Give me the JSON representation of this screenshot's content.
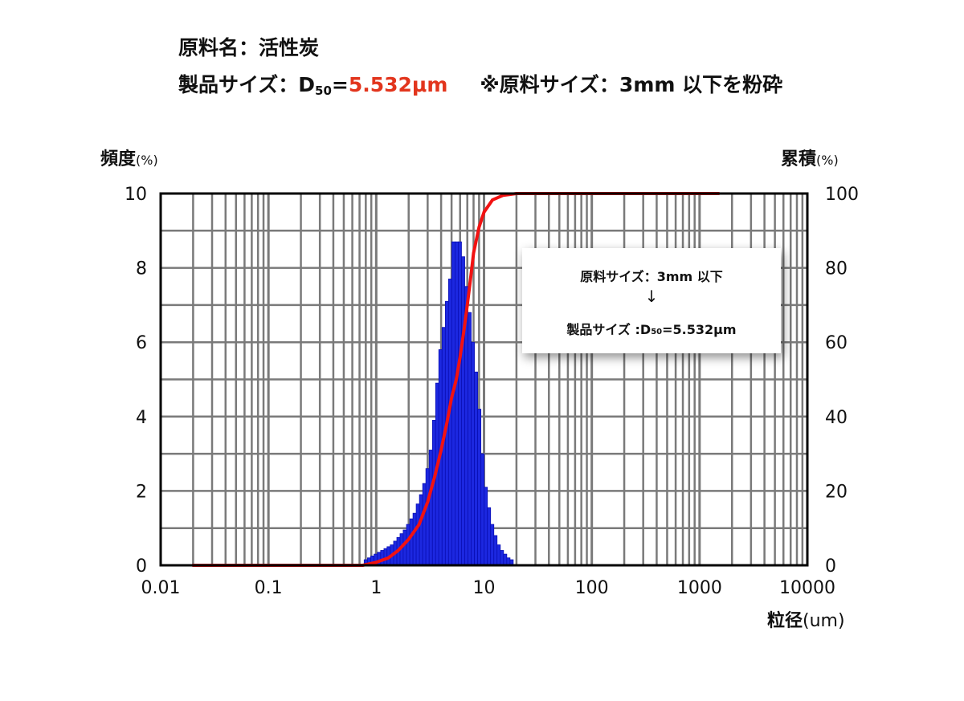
{
  "header": {
    "line1": "原料名：活性炭",
    "line2_label": "製品サイズ：D",
    "line2_sub": "50",
    "line2_eq": "=",
    "line2_value": "5.532μm",
    "line2_note": "※原料サイズ：3mm 以下を粉砕"
  },
  "annotation": {
    "line1": "原料サイズ：3mm 以下",
    "arrow": "↓",
    "line2_label": "製品サイズ :D",
    "line2_sub": "50",
    "line2_value": "=5.532μm"
  },
  "colors": {
    "bar": "#1c28e0",
    "bar_edge": "#0a0fb5",
    "curve": "#f21212",
    "grid": "#7a7a7a",
    "highlight": "#e2351d"
  },
  "chart_data": {
    "type": "bar",
    "x_scale": "log",
    "xlim": [
      0.01,
      10000
    ],
    "ylim_left": [
      0,
      10
    ],
    "ylim_right": [
      0,
      100
    ],
    "xlabel_main": "粒径",
    "xlabel_unit": "(um)",
    "ylabel_left_main": "頻度",
    "ylabel_left_unit": "(%)",
    "ylabel_right_main": "累積",
    "ylabel_right_unit": "(%)",
    "x_tick_labels": [
      "0.01",
      "0.1",
      "1",
      "10",
      "100",
      "1000",
      "10000"
    ],
    "x_tick_values": [
      0.01,
      0.1,
      1,
      10,
      100,
      1000,
      10000
    ],
    "y_left_tick_labels": [
      "0",
      "2",
      "4",
      "6",
      "8",
      "10"
    ],
    "y_right_tick_labels": [
      "0",
      "20",
      "40",
      "60",
      "80",
      "100"
    ],
    "grid": true,
    "frequency": [
      {
        "x": 0.8,
        "y": 0.15
      },
      {
        "x": 0.86,
        "y": 0.2
      },
      {
        "x": 0.92,
        "y": 0.25
      },
      {
        "x": 0.99,
        "y": 0.3
      },
      {
        "x": 1.06,
        "y": 0.35
      },
      {
        "x": 1.14,
        "y": 0.4
      },
      {
        "x": 1.22,
        "y": 0.45
      },
      {
        "x": 1.3,
        "y": 0.5
      },
      {
        "x": 1.4,
        "y": 0.55
      },
      {
        "x": 1.5,
        "y": 0.65
      },
      {
        "x": 1.61,
        "y": 0.75
      },
      {
        "x": 1.72,
        "y": 0.85
      },
      {
        "x": 1.84,
        "y": 0.95
      },
      {
        "x": 1.98,
        "y": 1.1
      },
      {
        "x": 2.12,
        "y": 1.25
      },
      {
        "x": 2.27,
        "y": 1.4
      },
      {
        "x": 2.43,
        "y": 1.65
      },
      {
        "x": 2.61,
        "y": 1.9
      },
      {
        "x": 2.79,
        "y": 2.2
      },
      {
        "x": 2.99,
        "y": 2.6
      },
      {
        "x": 3.21,
        "y": 3.1
      },
      {
        "x": 3.44,
        "y": 3.9
      },
      {
        "x": 3.68,
        "y": 4.9
      },
      {
        "x": 3.94,
        "y": 5.8
      },
      {
        "x": 4.23,
        "y": 6.4
      },
      {
        "x": 4.53,
        "y": 7.1
      },
      {
        "x": 4.85,
        "y": 7.7
      },
      {
        "x": 5.2,
        "y": 8.7
      },
      {
        "x": 5.57,
        "y": 8.7
      },
      {
        "x": 5.97,
        "y": 8.7
      },
      {
        "x": 6.4,
        "y": 8.3
      },
      {
        "x": 6.86,
        "y": 7.5
      },
      {
        "x": 7.35,
        "y": 6.8
      },
      {
        "x": 7.87,
        "y": 6.0
      },
      {
        "x": 8.43,
        "y": 5.2
      },
      {
        "x": 9.04,
        "y": 4.2
      },
      {
        "x": 9.69,
        "y": 3.0
      },
      {
        "x": 10.38,
        "y": 2.1
      },
      {
        "x": 11.12,
        "y": 1.55
      },
      {
        "x": 11.92,
        "y": 1.1
      },
      {
        "x": 12.77,
        "y": 0.8
      },
      {
        "x": 13.68,
        "y": 0.55
      },
      {
        "x": 14.66,
        "y": 0.4
      },
      {
        "x": 15.71,
        "y": 0.3
      },
      {
        "x": 16.84,
        "y": 0.2
      },
      {
        "x": 18.04,
        "y": 0.15
      }
    ],
    "cumulative": [
      {
        "x": 0.02,
        "y": 0
      },
      {
        "x": 0.75,
        "y": 0
      },
      {
        "x": 1.0,
        "y": 0.8
      },
      {
        "x": 1.3,
        "y": 2
      },
      {
        "x": 1.6,
        "y": 4
      },
      {
        "x": 2.0,
        "y": 7
      },
      {
        "x": 2.5,
        "y": 11
      },
      {
        "x": 3.0,
        "y": 17
      },
      {
        "x": 3.5,
        "y": 24
      },
      {
        "x": 4.0,
        "y": 31
      },
      {
        "x": 4.5,
        "y": 38
      },
      {
        "x": 5.0,
        "y": 45
      },
      {
        "x": 5.532,
        "y": 50
      },
      {
        "x": 6.0,
        "y": 56
      },
      {
        "x": 6.5,
        "y": 63
      },
      {
        "x": 7.0,
        "y": 70
      },
      {
        "x": 7.5,
        "y": 77
      },
      {
        "x": 8.0,
        "y": 84
      },
      {
        "x": 9.0,
        "y": 91
      },
      {
        "x": 10.0,
        "y": 95
      },
      {
        "x": 12.0,
        "y": 98.3
      },
      {
        "x": 15.0,
        "y": 99.5
      },
      {
        "x": 20.0,
        "y": 100
      },
      {
        "x": 1500,
        "y": 100
      }
    ]
  }
}
